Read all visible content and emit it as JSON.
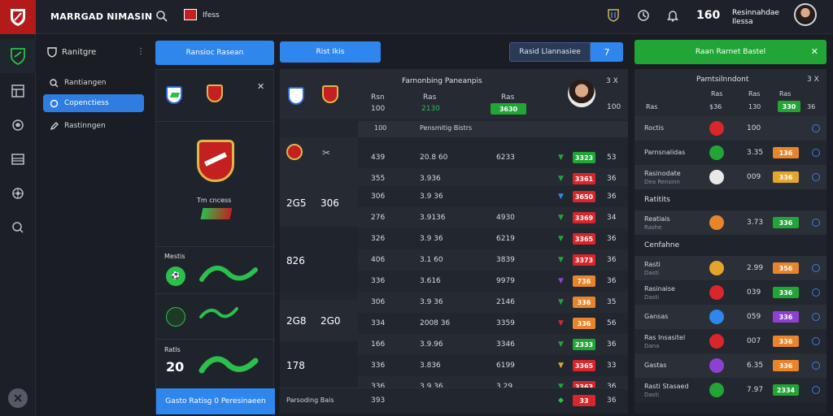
{
  "app": {
    "title": "MARRGAD NIMASIN",
    "flag_label": "Ifess",
    "count": "160",
    "user_label": "Resinnahdae\nIlessa"
  },
  "colors": {
    "accent_blue": "#2f86ec",
    "green": "#21a536",
    "red": "#d8262b",
    "orange": "#e8842a",
    "yellow": "#e4a52a",
    "purple": "#8e40d0"
  },
  "nav": {
    "header": "Ranitgre",
    "items": [
      {
        "label": "Rantiangen",
        "icon": "search-icon",
        "active": false
      },
      {
        "label": "Copenctiess",
        "icon": "circle-icon",
        "active": true
      },
      {
        "label": "Rastinngen",
        "icon": "pen-icon",
        "active": false
      }
    ]
  },
  "toolbar": {
    "btn1": "Ransioc Rasean",
    "btn2": "Rist Ikis",
    "search_label": "Rasid Llannasiee",
    "search_count": "7",
    "green_btn": "Raan Rarnet Bastel"
  },
  "col1": {
    "team_text": "Tm cncess",
    "label_matches": "Mestis",
    "label_recs": "Ratls",
    "rec_value": "20",
    "bottom_btn": "Gasto Ratisg 0 Peresinaeen"
  },
  "center": {
    "title": "Farnonbing Paneanpis",
    "head_left": "Rsn",
    "head_mid": "Ras",
    "head_val1": "100",
    "head_val2": "2130",
    "head_val3": "3630",
    "top_close": "3 X",
    "top_bot": "100",
    "subhead_left": "100",
    "subhead_mid": "Pensmitig Bistrs",
    "groups": [
      {
        "a": "2G5",
        "b": "306"
      },
      {
        "a": "826",
        "b": ""
      },
      {
        "a": "2G8",
        "b": "2G0"
      },
      {
        "a": "178",
        "b": ""
      }
    ],
    "rows": [
      {
        "c1": "439",
        "c2": "20.8 60",
        "c3": "6233",
        "badge": "3323",
        "bc": "green",
        "c5": "53",
        "arrow": "green"
      },
      {
        "c1": "355",
        "c2": "3.936",
        "c3": "",
        "badge": "3361",
        "bc": "red",
        "c5": "36",
        "arrow": "green"
      },
      {
        "c1": "306",
        "c2": "3.9 36",
        "c3": "",
        "badge": "3650",
        "bc": "red",
        "c5": "36",
        "arrow": "blue"
      },
      {
        "c1": "276",
        "c2": "3.9136",
        "c3": "4930",
        "badge": "3369",
        "bc": "red",
        "c5": "34",
        "arrow": "green"
      },
      {
        "c1": "326",
        "c2": "3.9 36",
        "c3": "6219",
        "badge": "3365",
        "bc": "red",
        "c5": "36",
        "arrow": "green"
      },
      {
        "c1": "406",
        "c2": "3.1 60",
        "c3": "3839",
        "badge": "3373",
        "bc": "red",
        "c5": "36",
        "arrow": "green"
      },
      {
        "c1": "336",
        "c2": "3.616",
        "c3": "9979",
        "badge": "736",
        "bc": "orange",
        "c5": "36",
        "arrow": "purple"
      },
      {
        "c1": "306",
        "c2": "3.9 36",
        "c3": "2146",
        "badge": "336",
        "bc": "orange",
        "c5": "35",
        "arrow": "green"
      },
      {
        "c1": "334",
        "c2": "2008 36",
        "c3": "3359",
        "badge": "336",
        "bc": "orange",
        "c5": "56",
        "arrow": "red"
      },
      {
        "c1": "166",
        "c2": "3.9.96",
        "c3": "3346",
        "badge": "2333",
        "bc": "green",
        "c5": "36",
        "arrow": "green"
      },
      {
        "c1": "336",
        "c2": "3.836",
        "c3": "6199",
        "badge": "3365",
        "bc": "red",
        "c5": "33",
        "arrow": "yellow"
      },
      {
        "c1": "336",
        "c2": "3.9.36",
        "c3": "3.29",
        "badge": "3363",
        "bc": "red",
        "c5": "36",
        "arrow": "green"
      }
    ],
    "footer": {
      "label": "Parsoding Bais",
      "c1": "393",
      "badge": "33",
      "c5": "36"
    }
  },
  "right": {
    "title": "Pamtsilnndont",
    "close": "3 X",
    "head": {
      "c1": "Ras",
      "c2": "Ras",
      "c3": "Ras",
      "c4": "Ras"
    },
    "head2": {
      "c0": "Ras",
      "c1": "$36",
      "c2": "130",
      "c3": "330",
      "c4": "36"
    },
    "sections": [
      {
        "label": "",
        "rows": [
          {
            "name": "Roctis",
            "sub": "",
            "val": "100",
            "badge": "",
            "bc": "",
            "logo": "red"
          },
          {
            "name": "Parnsnalidas",
            "sub": "",
            "val": "3.35",
            "badge": "136",
            "bc": "orange",
            "logo": "green"
          },
          {
            "name": "Rasinodate",
            "sub": "Dea Rensinn",
            "val": "009",
            "badge": "336",
            "bc": "yellow",
            "logo": "white"
          }
        ]
      },
      {
        "label": "Ratitits",
        "rows": [
          {
            "name": "Reatiais",
            "sub": "Rashe",
            "val": "3.73",
            "badge": "336",
            "bc": "green",
            "logo": "orange"
          }
        ]
      },
      {
        "label": "Cenfahne",
        "rows": [
          {
            "name": "Rasti",
            "sub": "Dasti",
            "val": "2.99",
            "badge": "356",
            "bc": "orange",
            "logo": "yellow"
          },
          {
            "name": "Rasinaise",
            "sub": "Dasti",
            "val": "039",
            "badge": "336",
            "bc": "green",
            "logo": "red"
          },
          {
            "name": "Gansas",
            "sub": "",
            "val": "059",
            "badge": "336",
            "bc": "purple",
            "logo": "blue"
          },
          {
            "name": "Ras Insasitel",
            "sub": "Dana",
            "val": "007",
            "badge": "336",
            "bc": "orange",
            "logo": "red"
          },
          {
            "name": "Gastas",
            "sub": "",
            "val": "6.35",
            "badge": "336",
            "bc": "orange",
            "logo": "purple"
          },
          {
            "name": "Rasti Stasaed",
            "sub": "Dasti",
            "val": "7.97",
            "badge": "2334",
            "bc": "green",
            "logo": "green"
          }
        ]
      }
    ]
  }
}
